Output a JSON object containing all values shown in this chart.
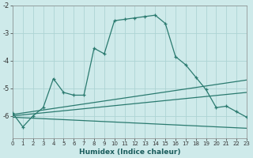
{
  "xlabel": "Humidex (Indice chaleur)",
  "ylabel": "",
  "bg_color": "#ceeaea",
  "grid_color": "#add4d4",
  "line_color": "#2a7a6f",
  "xlim": [
    0,
    23
  ],
  "ylim": [
    -6.8,
    -2.0
  ],
  "yticks": [
    -6,
    -5,
    -4,
    -3,
    -2
  ],
  "xticks": [
    0,
    1,
    2,
    3,
    4,
    5,
    6,
    7,
    8,
    9,
    10,
    11,
    12,
    13,
    14,
    15,
    16,
    17,
    18,
    19,
    20,
    21,
    22,
    23
  ],
  "line1_x": [
    0,
    1,
    2,
    3,
    4,
    5,
    6,
    7,
    8,
    9,
    10,
    11,
    12,
    13,
    14,
    15,
    16,
    17,
    18,
    19,
    20,
    21,
    22,
    23
  ],
  "line1_y": [
    -5.9,
    -6.4,
    -6.0,
    -5.7,
    -4.65,
    -5.15,
    -5.25,
    -5.25,
    -3.55,
    -3.75,
    -2.55,
    -2.5,
    -2.45,
    -2.4,
    -2.35,
    -2.65,
    -3.85,
    -4.15,
    -4.6,
    -5.05,
    -5.7,
    -5.65,
    -5.85,
    -6.05
  ],
  "line2_x": [
    0,
    23
  ],
  "line2_y": [
    -5.95,
    -4.7
  ],
  "line3_x": [
    0,
    23
  ],
  "line3_y": [
    -6.0,
    -5.15
  ],
  "line4_x": [
    0,
    23
  ],
  "line4_y": [
    -6.05,
    -6.45
  ]
}
